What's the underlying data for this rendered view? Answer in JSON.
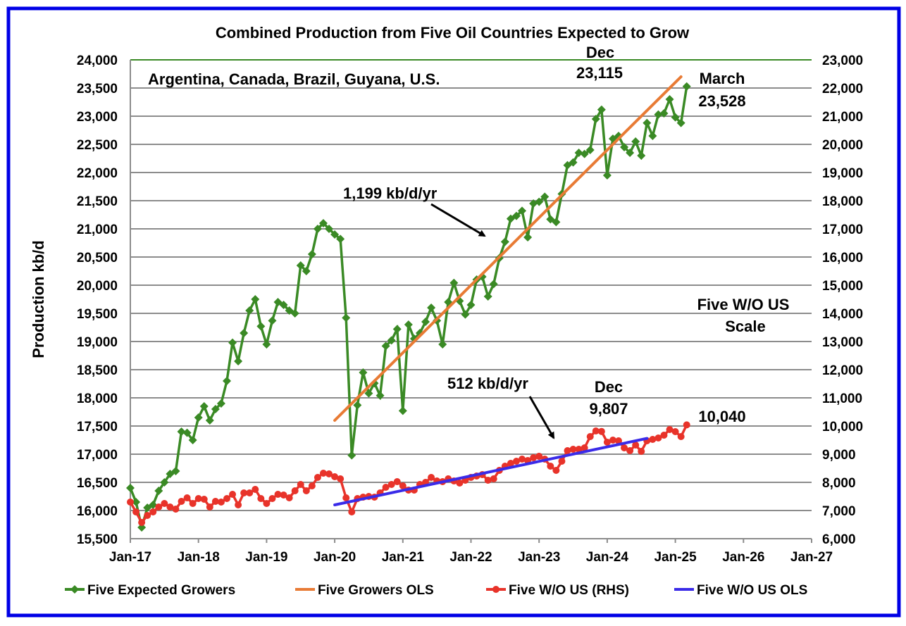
{
  "chart_data": {
    "type": "line",
    "title": "Combined Production from Five Oil Countries Expected to Grow",
    "subtitle": "Argentina, Canada, Brazil, Guyana, U.S.",
    "ylabel": "Production kb/d",
    "ylim": [
      15500,
      24000
    ],
    "y2lim": [
      6000,
      23000
    ],
    "yticks": [
      "15,500",
      "16,000",
      "16,500",
      "17,000",
      "17,500",
      "18,000",
      "18,500",
      "19,000",
      "19,500",
      "20,000",
      "20,500",
      "21,000",
      "21,500",
      "22,000",
      "22,500",
      "23,000",
      "23,500",
      "24,000"
    ],
    "y2ticks": [
      "6,000",
      "7,000",
      "8,000",
      "9,000",
      "10,000",
      "11,000",
      "12,000",
      "13,000",
      "14,000",
      "15,000",
      "16,000",
      "17,000",
      "18,000",
      "19,000",
      "20,000",
      "21,000",
      "22,000",
      "23,000"
    ],
    "xticks": [
      "Jan-17",
      "Jan-18",
      "Jan-19",
      "Jan-20",
      "Jan-21",
      "Jan-22",
      "Jan-23",
      "Jan-24",
      "Jan-25",
      "Jan-26",
      "Jan-27"
    ],
    "x_start": "Jan-17",
    "grid": true,
    "legend_placement": "bottom",
    "series": [
      {
        "name": "Five Expected Growers",
        "axis": "left",
        "color": "#3a8a25",
        "marker": "diamond",
        "values": [
          16400,
          16150,
          15700,
          16050,
          16100,
          16350,
          16500,
          16650,
          16700,
          17400,
          17380,
          17250,
          17650,
          17850,
          17600,
          17800,
          17900,
          18300,
          18980,
          18650,
          19150,
          19550,
          19750,
          19270,
          18950,
          19370,
          19700,
          19650,
          19550,
          19500,
          20350,
          20250,
          20550,
          21000,
          21100,
          21000,
          20900,
          20820,
          19420,
          16980,
          17870,
          18450,
          18080,
          18260,
          18040,
          18920,
          19020,
          19220,
          17770,
          19300,
          19050,
          19150,
          19350,
          19600,
          19370,
          18950,
          19700,
          20040,
          19720,
          19480,
          19650,
          20100,
          20150,
          19800,
          20020,
          20480,
          20770,
          21180,
          21230,
          21320,
          20850,
          21450,
          21480,
          21570,
          21170,
          21120,
          21620,
          22130,
          22180,
          22350,
          22330,
          22400,
          22950,
          23115,
          21950,
          22600,
          22650,
          22450,
          22350,
          22550,
          22300,
          22880,
          22650,
          23030,
          23050,
          23300,
          22980,
          22880,
          23528
        ]
      },
      {
        "name": "Five Growers OLS",
        "axis": "left",
        "color": "#e87b35",
        "marker": "none",
        "start_month_index": 36,
        "end_month_index": 97,
        "values": [
          17600,
          23700
        ]
      },
      {
        "name": "Five W/O US (RHS)",
        "axis": "right",
        "color": "#e8332a",
        "marker": "circle",
        "values": [
          7300,
          6950,
          6575,
          6825,
          6950,
          7125,
          7250,
          7125,
          7050,
          7325,
          7450,
          7250,
          7425,
          7400,
          7125,
          7325,
          7300,
          7425,
          7575,
          7200,
          7625,
          7625,
          7750,
          7425,
          7250,
          7425,
          7575,
          7550,
          7450,
          7700,
          7925,
          7700,
          7875,
          8175,
          8325,
          8300,
          8200,
          8125,
          7450,
          6950,
          7425,
          7475,
          7500,
          7475,
          7625,
          7825,
          7925,
          8025,
          7875,
          7725,
          7725,
          7925,
          8000,
          8175,
          8050,
          8025,
          8125,
          8050,
          7975,
          8075,
          8175,
          8225,
          8275,
          8075,
          8125,
          8425,
          8575,
          8675,
          8750,
          8825,
          8775,
          8875,
          8925,
          8825,
          8575,
          8425,
          8750,
          9125,
          9175,
          9175,
          9225,
          9625,
          9825,
          9807,
          9425,
          9500,
          9475,
          9225,
          9125,
          9325,
          9100,
          9475,
          9525,
          9575,
          9675,
          9875,
          9800,
          9625,
          10040
        ]
      },
      {
        "name": "Five W/O US OLS",
        "axis": "right",
        "color": "#3a2be8",
        "marker": "none",
        "start_month_index": 36,
        "end_month_index": 91,
        "values": [
          7200,
          9560
        ]
      }
    ],
    "annotations": {
      "growers_slope": "1,199 kb/d/yr",
      "wo_us_slope": "512 kb/d/yr",
      "dec_growers_label": "Dec",
      "dec_growers_value": "23,115",
      "march_label": "March",
      "march_value": "23,528",
      "dec_wo_us_label": "Dec",
      "dec_wo_us_value": "9,807",
      "latest_wo_us_value": "10,040",
      "rhs_note_line1": "Five W/O US",
      "rhs_note_line2": "Scale"
    }
  },
  "colors": {
    "border": "#0000e6",
    "grid": "#8c8c8c",
    "top_line": "#3a8a25"
  }
}
